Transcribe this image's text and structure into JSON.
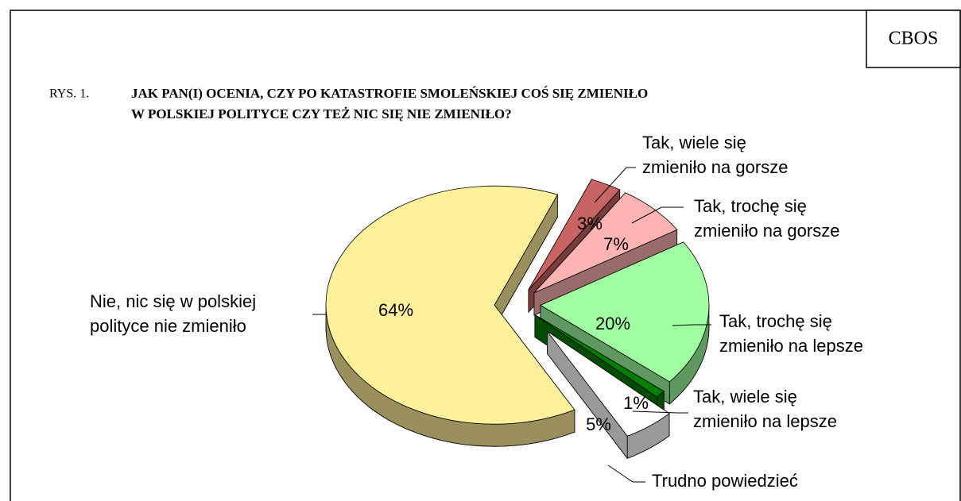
{
  "source": "CBOS",
  "chart_data": {
    "type": "pie",
    "figure_label": "RYS. 1.",
    "title": "JAK PAN(I) OCENIA, CZY PO KATASTROFIE SMOLEŃSKIEJ COŚ SIĘ ZMIENIŁO\nW POLSKIEJ POLITYCE CZY TEŻ NIC SIĘ NIE ZMIENIŁO?",
    "categories": [
      "Tak, wiele się\nzmieniło na gorsze",
      "Tak, trochę się\nzmieniło na gorsze",
      "Tak, trochę się\nzmieniło na lepsze",
      "Tak, wiele się\nzmieniło na lepsze",
      "Trudno powiedzieć",
      "Nie, nic się w polskiej\npolityce nie zmieniło"
    ],
    "values": [
      3,
      7,
      20,
      1,
      5,
      64
    ],
    "value_labels": [
      "3%",
      "7%",
      "20%",
      "1%",
      "5%",
      "64%"
    ],
    "colors": [
      "#c86464",
      "#ffb4b4",
      "#a0ffa0",
      "#008000",
      "#ffffff",
      "#fff09c"
    ]
  }
}
